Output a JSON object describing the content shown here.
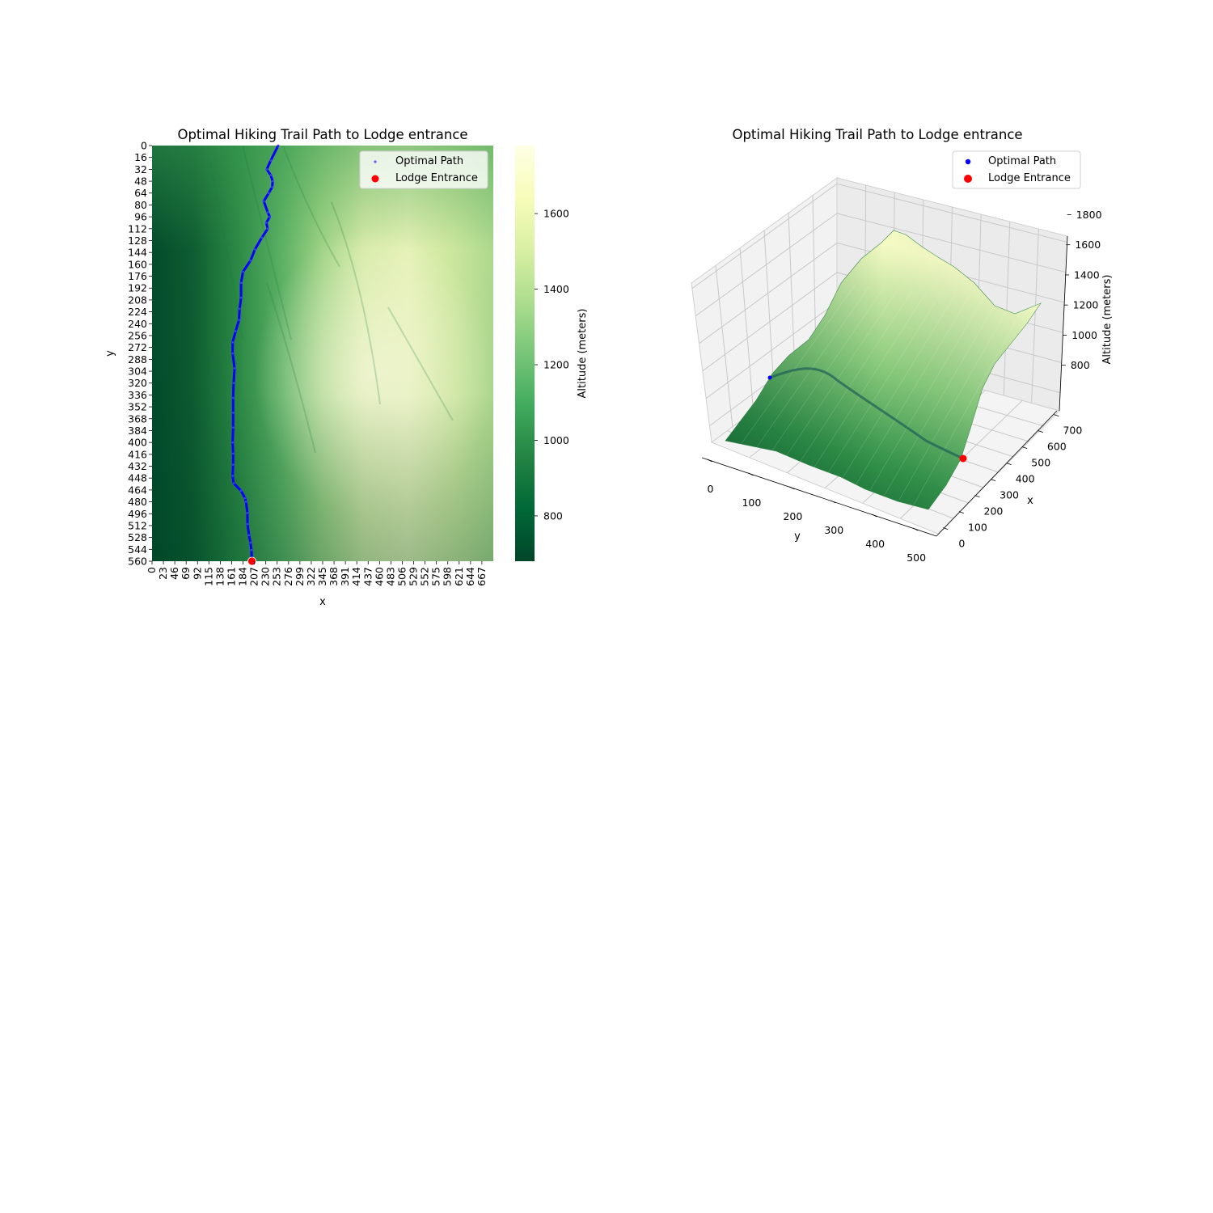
{
  "chart_data": [
    {
      "type": "heatmap",
      "title": "Optimal Hiking Trail Path to Lodge entrance",
      "xlabel": "x",
      "ylabel": "y",
      "x_ticks": [
        "0",
        "23",
        "46",
        "69",
        "92",
        "115",
        "138",
        "161",
        "184",
        "207",
        "230",
        "253",
        "276",
        "299",
        "322",
        "345",
        "368",
        "391",
        "414",
        "437",
        "460",
        "483",
        "506",
        "529",
        "552",
        "575",
        "598",
        "621",
        "644",
        "667"
      ],
      "y_ticks": [
        "0",
        "16",
        "32",
        "48",
        "64",
        "80",
        "96",
        "112",
        "128",
        "144",
        "160",
        "176",
        "192",
        "208",
        "224",
        "240",
        "256",
        "272",
        "288",
        "304",
        "320",
        "336",
        "352",
        "368",
        "384",
        "400",
        "416",
        "432",
        "448",
        "464",
        "480",
        "496",
        "512",
        "528",
        "544",
        "560"
      ],
      "xlim": [
        0,
        690
      ],
      "ylim": [
        0,
        560
      ],
      "colorbar": {
        "label": "Altitude (meters)",
        "range": [
          680,
          1780
        ],
        "ticks": [
          "800",
          "1000",
          "1200",
          "1400",
          "1600"
        ],
        "colormap": "YlGn_r",
        "colors": [
          "#004529",
          "#006837",
          "#238443",
          "#41ab5d",
          "#78c679",
          "#addd8e",
          "#d9f0a3",
          "#f7fcb9",
          "#ffffe5"
        ]
      },
      "series": [
        {
          "name": "Optimal Path",
          "color": "#0000ff",
          "x": [
            255,
            240,
            232,
            240,
            244,
            243,
            236,
            226,
            234,
            238,
            231,
            234,
            222,
            208,
            199,
            184,
            180,
            180,
            177,
            176,
            169,
            163,
            163,
            167,
            165,
            164,
            164,
            164,
            163,
            164,
            164,
            163,
            165,
            180,
            188,
            190,
            193,
            193,
            196,
            199,
            201,
            202
          ],
          "y": [
            0,
            20,
            32,
            40,
            48,
            56,
            64,
            75,
            90,
            96,
            104,
            112,
            124,
            140,
            155,
            170,
            185,
            205,
            220,
            235,
            250,
            265,
            280,
            300,
            320,
            340,
            360,
            380,
            400,
            415,
            430,
            445,
            455,
            465,
            475,
            480,
            495,
            510,
            525,
            535,
            545,
            560
          ]
        },
        {
          "name": "Lodge Entrance",
          "color": "#ff0000",
          "x": [
            202
          ],
          "y": [
            560
          ]
        }
      ],
      "legend": "top-right"
    },
    {
      "type": "surface",
      "title": "Optimal Hiking Trail Path to Lodge entrance",
      "xlabel": "y",
      "ylabel": "x",
      "zlabel": "Altitude (meters)",
      "y_axis_ticks": [
        "0",
        "100",
        "200",
        "300",
        "400",
        "500"
      ],
      "x_axis_ticks": [
        "0",
        "100",
        "200",
        "300",
        "400",
        "500",
        "600",
        "700"
      ],
      "z_ticks": [
        "800",
        "1000",
        "1200",
        "1400",
        "1600",
        "1800"
      ],
      "zlim": [
        680,
        1840
      ],
      "series": [
        {
          "name": "Optimal Path",
          "color": "#0000ff"
        },
        {
          "name": "Lodge Entrance",
          "color": "#ff0000"
        }
      ],
      "legend": "top-right"
    }
  ]
}
